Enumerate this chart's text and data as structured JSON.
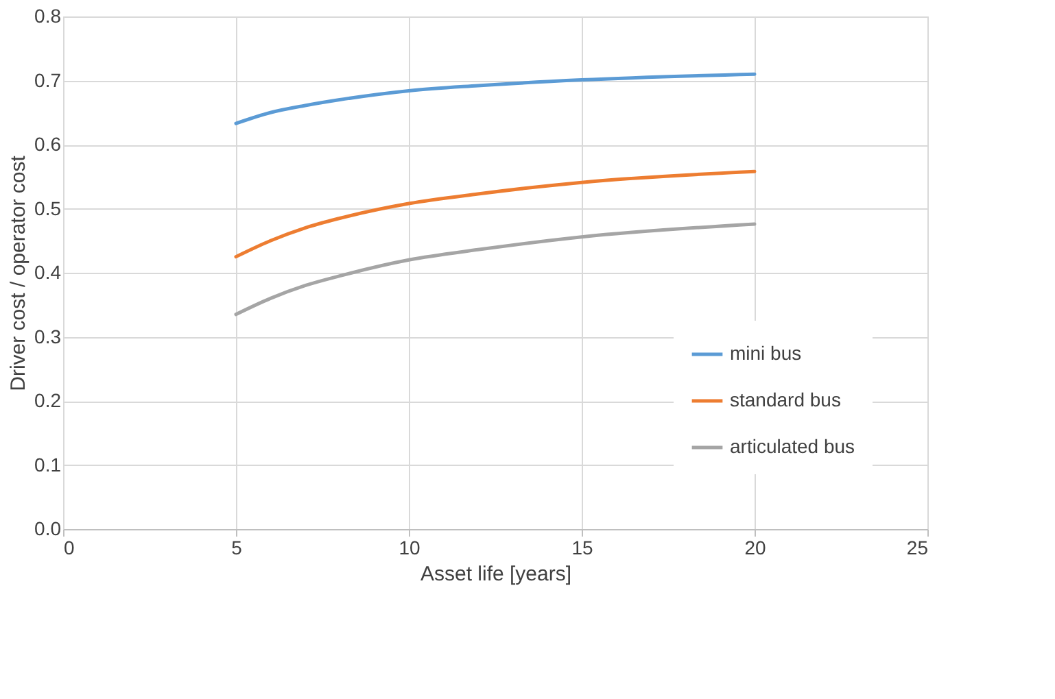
{
  "chart_data": {
    "type": "line",
    "xlabel": "Asset life [years]",
    "ylabel": "Driver cost / operator cost",
    "xlim": [
      0,
      25
    ],
    "xticks": [
      0,
      5,
      10,
      15,
      20,
      25
    ],
    "ylim": [
      0,
      0.8
    ],
    "yticks": [
      {
        "value": 0,
        "label": "0.0"
      },
      {
        "value": 0.1,
        "label": "0.1"
      },
      {
        "value": 0.2,
        "label": "0.2"
      },
      {
        "value": 0.3,
        "label": "0.3"
      },
      {
        "value": 0.4,
        "label": "0.4"
      },
      {
        "value": 0.5,
        "label": "0.5"
      },
      {
        "value": 0.6,
        "label": "0.6"
      },
      {
        "value": 0.7,
        "label": "0.7"
      },
      {
        "value": 0.8,
        "label": "0.8"
      }
    ],
    "grid": true,
    "legend": "bottom right",
    "marker": "none",
    "line_style": "solid",
    "x": [
      5,
      6,
      7,
      8,
      10,
      12,
      15,
      20
    ],
    "series": [
      {
        "name": "mini bus",
        "color": "#5b9bd5",
        "values": [
          0.633,
          0.65,
          0.661,
          0.67,
          0.684,
          0.692,
          0.701,
          0.71
        ]
      },
      {
        "name": "standard bus",
        "color": "#ed7d31",
        "values": [
          0.425,
          0.45,
          0.47,
          0.485,
          0.508,
          0.523,
          0.541,
          0.558
        ]
      },
      {
        "name": "articulated bus",
        "color": "#a5a5a5",
        "values": [
          0.335,
          0.36,
          0.38,
          0.395,
          0.42,
          0.436,
          0.456,
          0.476
        ]
      }
    ]
  }
}
